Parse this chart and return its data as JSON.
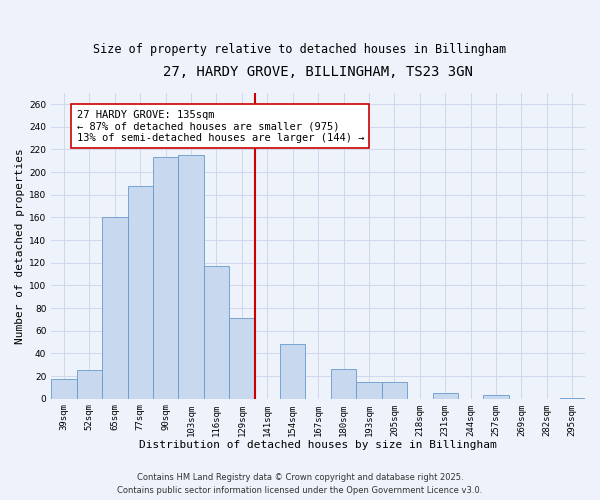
{
  "title": "27, HARDY GROVE, BILLINGHAM, TS23 3GN",
  "subtitle": "Size of property relative to detached houses in Billingham",
  "xlabel": "Distribution of detached houses by size in Billingham",
  "ylabel": "Number of detached properties",
  "bar_labels": [
    "39sqm",
    "52sqm",
    "65sqm",
    "77sqm",
    "90sqm",
    "103sqm",
    "116sqm",
    "129sqm",
    "141sqm",
    "154sqm",
    "167sqm",
    "180sqm",
    "193sqm",
    "205sqm",
    "218sqm",
    "231sqm",
    "244sqm",
    "257sqm",
    "269sqm",
    "282sqm",
    "295sqm"
  ],
  "bar_values": [
    17,
    25,
    160,
    188,
    213,
    215,
    117,
    71,
    0,
    48,
    0,
    26,
    15,
    15,
    0,
    5,
    0,
    3,
    0,
    0,
    1
  ],
  "bar_color": "#c8d8ee",
  "bar_edge_color": "#6699cc",
  "vline_x_index": 8,
  "vline_color": "#cc0000",
  "annotation_title": "27 HARDY GROVE: 135sqm",
  "annotation_line1": "← 87% of detached houses are smaller (975)",
  "annotation_line2": "13% of semi-detached houses are larger (144) →",
  "annotation_box_facecolor": "#ffffff",
  "annotation_box_edgecolor": "#cc0000",
  "ylim": [
    0,
    270
  ],
  "yticks": [
    0,
    20,
    40,
    60,
    80,
    100,
    120,
    140,
    160,
    180,
    200,
    220,
    240,
    260
  ],
  "background_color": "#eef2fb",
  "grid_color": "#d0d8ee",
  "footer_line1": "Contains HM Land Registry data © Crown copyright and database right 2025.",
  "footer_line2": "Contains public sector information licensed under the Open Government Licence v3.0.",
  "title_fontsize": 10,
  "subtitle_fontsize": 8.5,
  "axis_label_fontsize": 8,
  "tick_fontsize": 6.5,
  "annotation_fontsize": 7.5,
  "footer_fontsize": 6
}
